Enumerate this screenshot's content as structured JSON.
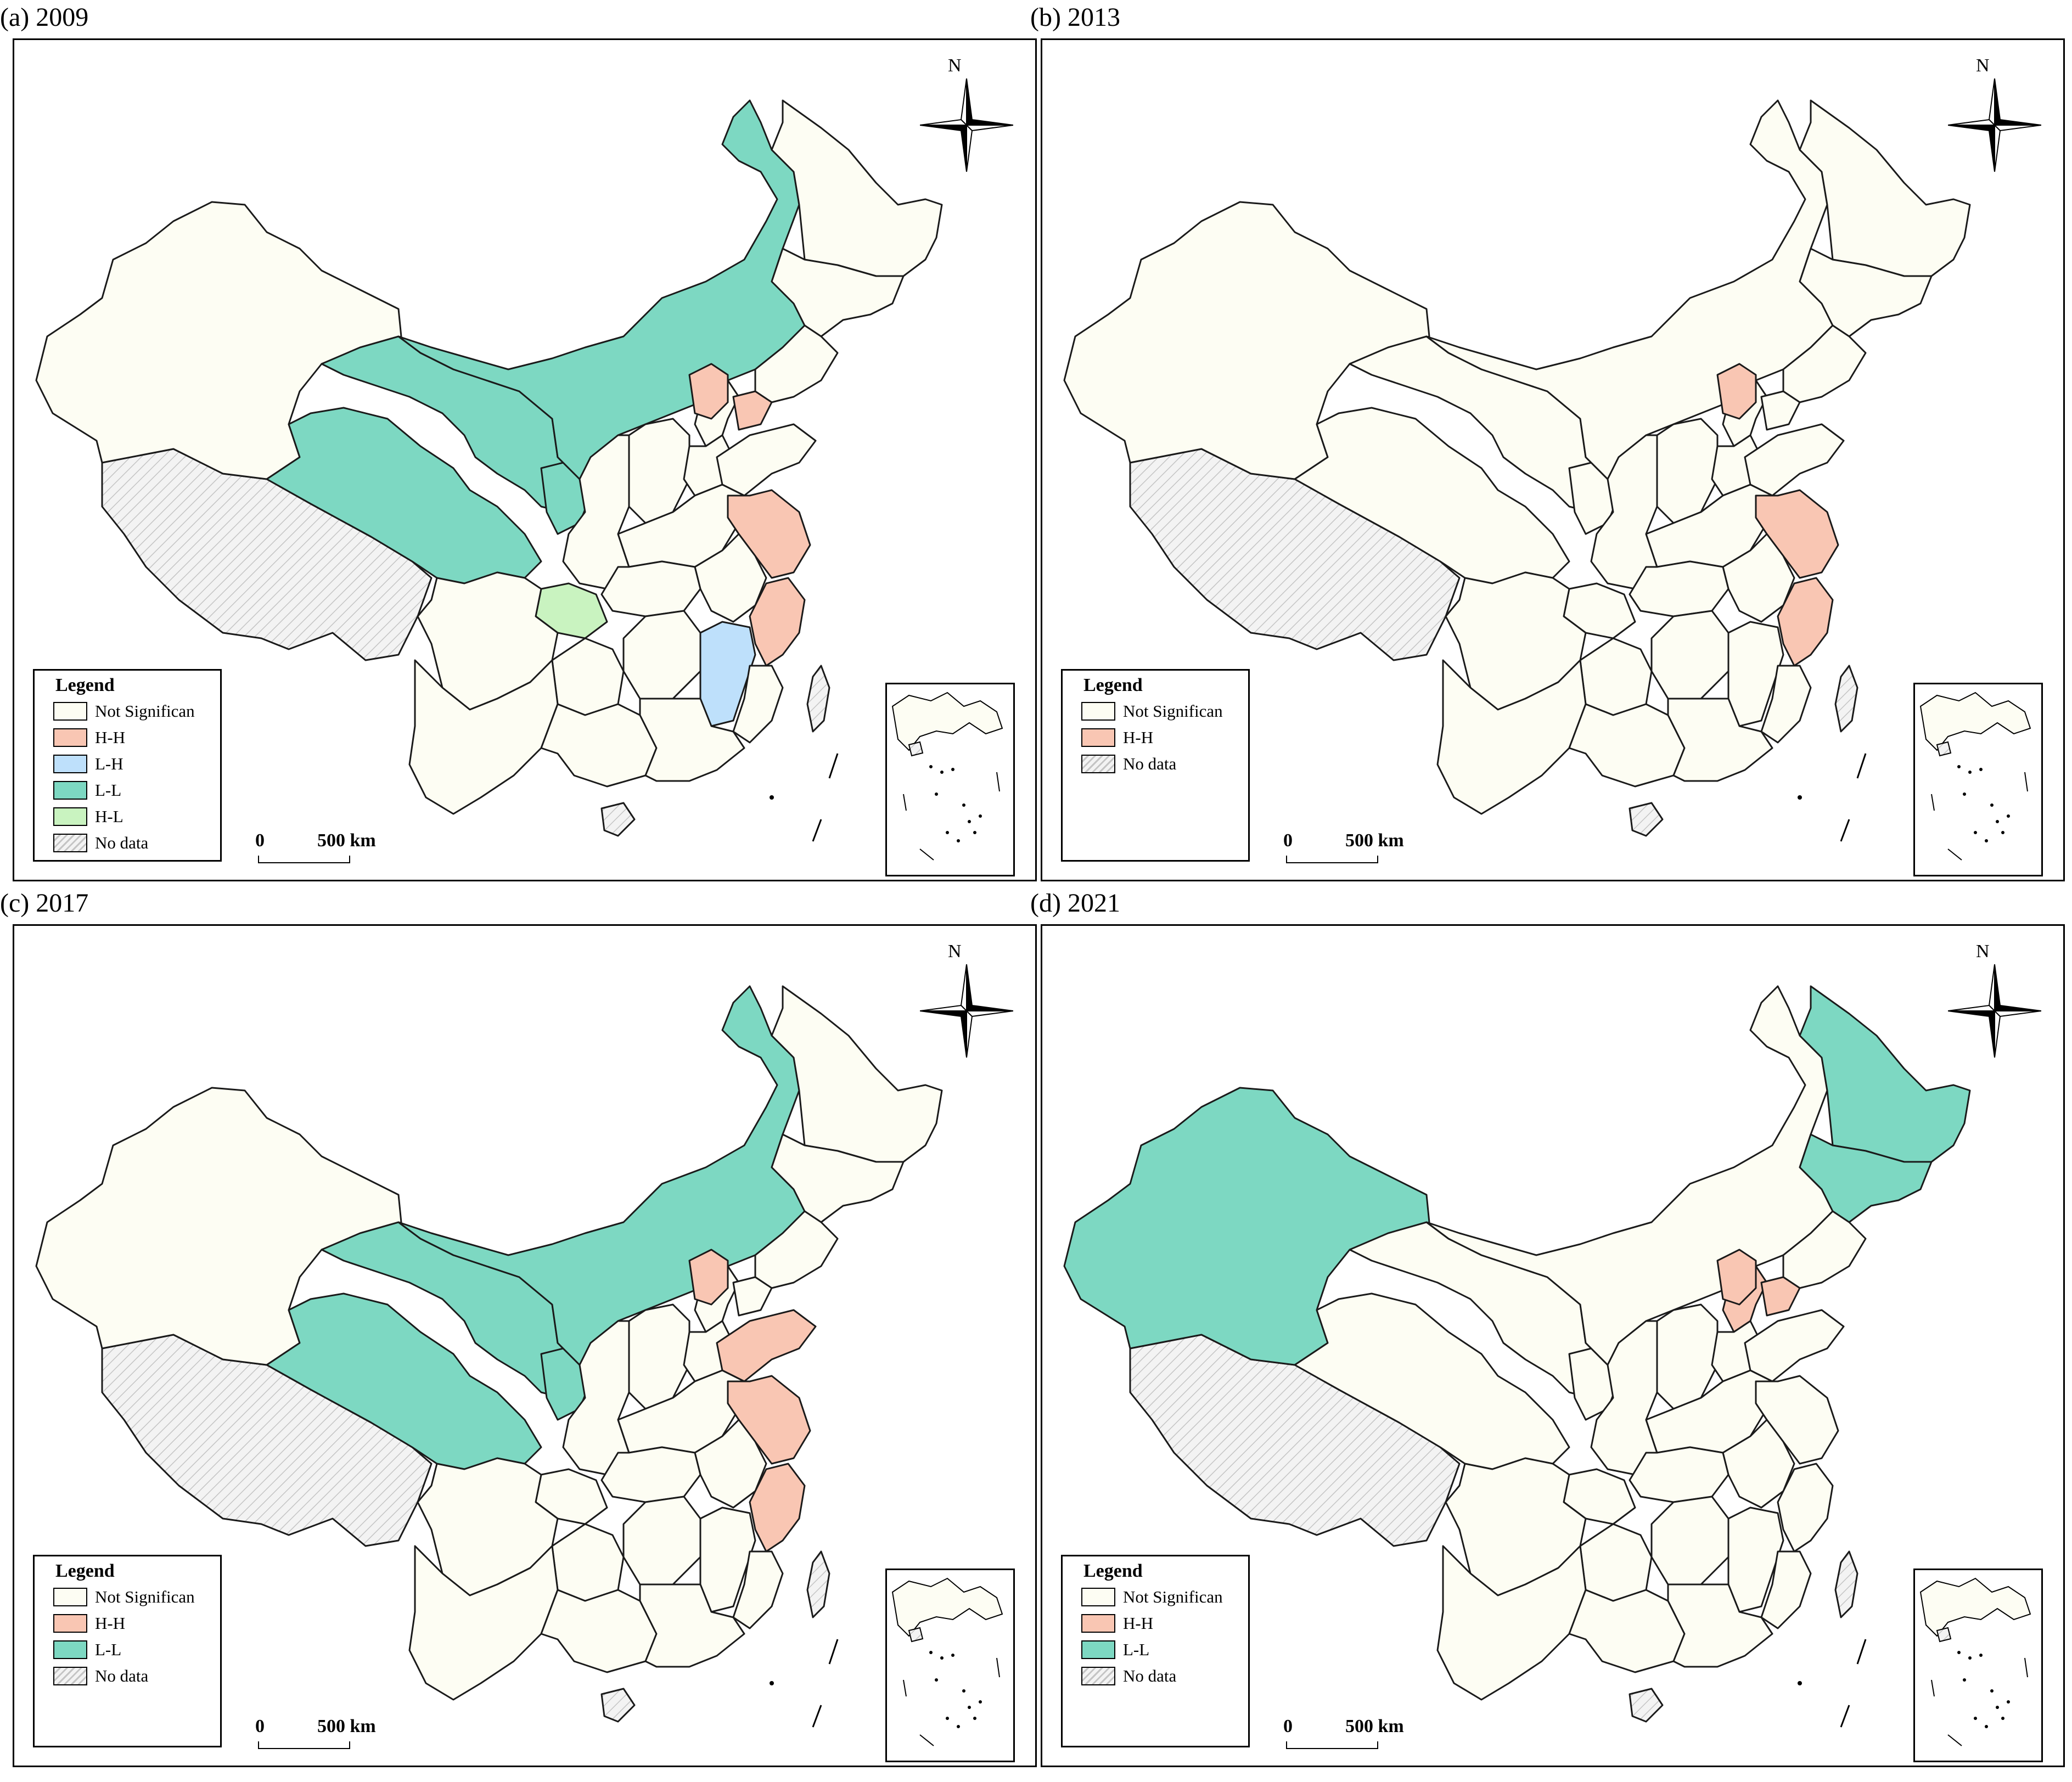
{
  "colors": {
    "not_significant": "#fdfdf3",
    "hh": "#f9c6b3",
    "lh": "#bee0fb",
    "ll": "#7dd8c2",
    "hl": "#c9f3c0",
    "no_data_bg": "#f1f1f1",
    "hatch": "#c4c4c4",
    "border": "#1a1a1a"
  },
  "panels": [
    {
      "id": "a",
      "title": "(a) 2009",
      "legend_title": "Legend",
      "legend": [
        {
          "key": "not_significant",
          "label": "Not Significan"
        },
        {
          "key": "hh",
          "label": "H-H"
        },
        {
          "key": "lh",
          "label": "L-H"
        },
        {
          "key": "ll",
          "label": "L-L"
        },
        {
          "key": "hl",
          "label": "H-L"
        },
        {
          "key": "no_data",
          "label": "No data"
        }
      ],
      "scale_zero": "0",
      "scale_label": "500 km",
      "north": "N",
      "regions": {
        "xinjiang": "not_significant",
        "inner_mongolia": "ll",
        "gansu": "ll",
        "qinghai": "ll",
        "ningxia": "ll",
        "hh_north_a": "hh",
        "hh_north_b": "hh",
        "beijing_area": "not_significant",
        "jiangsu": "hh",
        "zhejiang": "hh",
        "jiangxi": "lh",
        "chongqing": "hl",
        "heilongjiang": "not_significant",
        "jilin": "not_significant",
        "shandong": "not_significant"
      }
    },
    {
      "id": "b",
      "title": "(b) 2013",
      "legend_title": "Legend",
      "legend": [
        {
          "key": "not_significant",
          "label": "Not Significan"
        },
        {
          "key": "hh",
          "label": "H-H"
        },
        {
          "key": "no_data",
          "label": "No data"
        }
      ],
      "scale_zero": "0",
      "scale_label": "500 km",
      "north": "N",
      "regions": {
        "xinjiang": "not_significant",
        "inner_mongolia": "not_significant",
        "gansu": "not_significant",
        "qinghai": "not_significant",
        "ningxia": "not_significant",
        "hh_north_a": "hh",
        "hh_north_b": "not_significant",
        "beijing_area": "not_significant",
        "jiangsu": "hh",
        "zhejiang": "hh",
        "jiangxi": "not_significant",
        "chongqing": "not_significant",
        "heilongjiang": "not_significant",
        "jilin": "not_significant",
        "shandong": "not_significant"
      }
    },
    {
      "id": "c",
      "title": "(c) 2017",
      "legend_title": "Legend",
      "legend": [
        {
          "key": "not_significant",
          "label": "Not Significan"
        },
        {
          "key": "hh",
          "label": "H-H"
        },
        {
          "key": "ll",
          "label": "L-L"
        },
        {
          "key": "no_data",
          "label": "No data"
        }
      ],
      "scale_zero": "0",
      "scale_label": "500 km",
      "north": "N",
      "regions": {
        "xinjiang": "not_significant",
        "inner_mongolia": "ll",
        "gansu": "ll",
        "qinghai": "ll",
        "ningxia": "ll",
        "hh_north_a": "hh",
        "hh_north_b": "not_significant",
        "beijing_area": "not_significant",
        "jiangsu": "hh",
        "zhejiang": "hh",
        "jiangxi": "not_significant",
        "chongqing": "not_significant",
        "heilongjiang": "not_significant",
        "jilin": "not_significant",
        "shandong": "hh"
      }
    },
    {
      "id": "d",
      "title": "(d) 2021",
      "legend_title": "Legend",
      "legend": [
        {
          "key": "not_significant",
          "label": "Not Significan"
        },
        {
          "key": "hh",
          "label": "H-H"
        },
        {
          "key": "ll",
          "label": "L-L"
        },
        {
          "key": "no_data",
          "label": "No data"
        }
      ],
      "scale_zero": "0",
      "scale_label": "500 km",
      "north": "N",
      "regions": {
        "xinjiang": "ll",
        "inner_mongolia": "not_significant",
        "gansu": "not_significant",
        "qinghai": "not_significant",
        "ningxia": "not_significant",
        "hh_north_a": "hh",
        "hh_north_b": "hh",
        "beijing_area": "hh",
        "jiangsu": "not_significant",
        "zhejiang": "not_significant",
        "jiangxi": "not_significant",
        "chongqing": "not_significant",
        "heilongjiang": "ll",
        "jilin": "ll",
        "shandong": "not_significant"
      }
    }
  ]
}
